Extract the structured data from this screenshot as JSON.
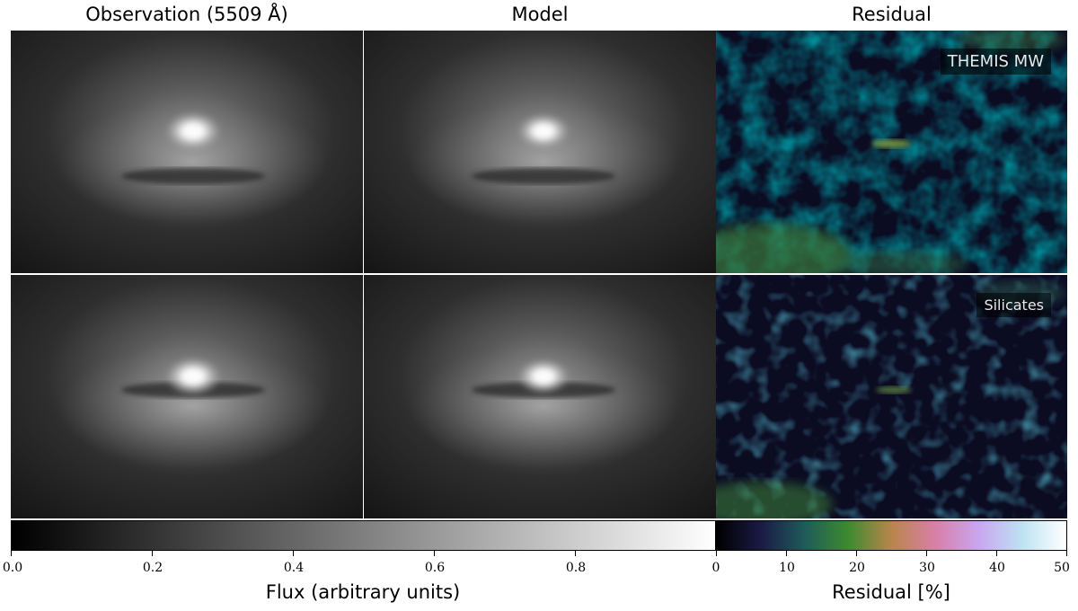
{
  "column_titles": {
    "observation": "Observation (5509 Å)",
    "model": "Model",
    "residual": "Residual"
  },
  "rows": [
    {
      "residual_label": "THEMIS MW"
    },
    {
      "residual_label": "Silicates"
    }
  ],
  "colorbars": {
    "flux": {
      "label": "Flux (arbitrary units)",
      "ticks": [
        "0.0",
        "0.2",
        "0.4",
        "0.6",
        "0.8"
      ],
      "range": [
        0,
        1
      ],
      "colormap": "gray"
    },
    "residual": {
      "label": "Residual [%]",
      "ticks": [
        "0",
        "10",
        "20",
        "30",
        "40",
        "50"
      ],
      "range": [
        0,
        50
      ],
      "colormap": "cubehelix-like",
      "colors": [
        "#000000",
        "#1a1a44",
        "#1f5a5a",
        "#3d8a2e",
        "#b9854c",
        "#d87fa8",
        "#c9a6f0",
        "#bde3f2",
        "#ffffff"
      ]
    }
  }
}
